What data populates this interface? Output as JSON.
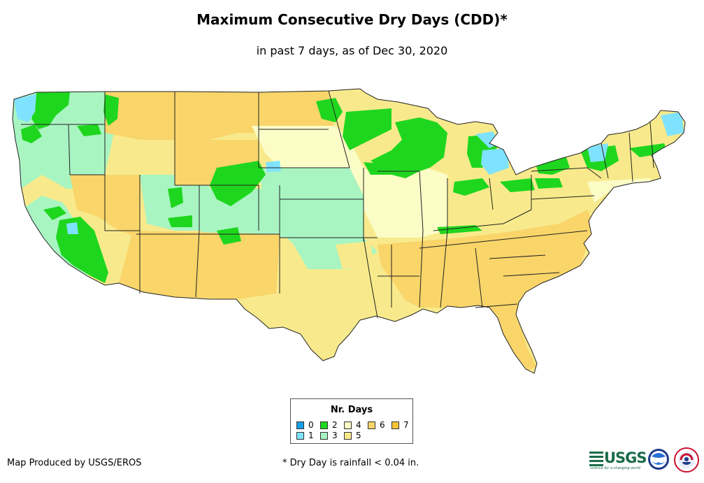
{
  "title": "Maximum Consecutive Dry Days (CDD)*",
  "subtitle": "in past 7 days, as of Dec 30, 2020",
  "legend": {
    "title": "Nr. Days",
    "items": [
      {
        "label": "0",
        "color": "#1a9ee6"
      },
      {
        "label": "1",
        "color": "#7fe3ff"
      },
      {
        "label": "2",
        "color": "#1fd61f"
      },
      {
        "label": "3",
        "color": "#a8f5c2"
      },
      {
        "label": "4",
        "color": "#fbfcc6"
      },
      {
        "label": "5",
        "color": "#f8ea8c"
      },
      {
        "label": "6",
        "color": "#f9d56a"
      },
      {
        "label": "7",
        "color": "#f9c535"
      }
    ]
  },
  "credit": "Map Produced by USGS/EROS",
  "footnote": "* Dry Day is rainfall < 0.04 in.",
  "logos": {
    "usgs": "USGS",
    "usgs_tagline": "science for a changing world"
  }
}
